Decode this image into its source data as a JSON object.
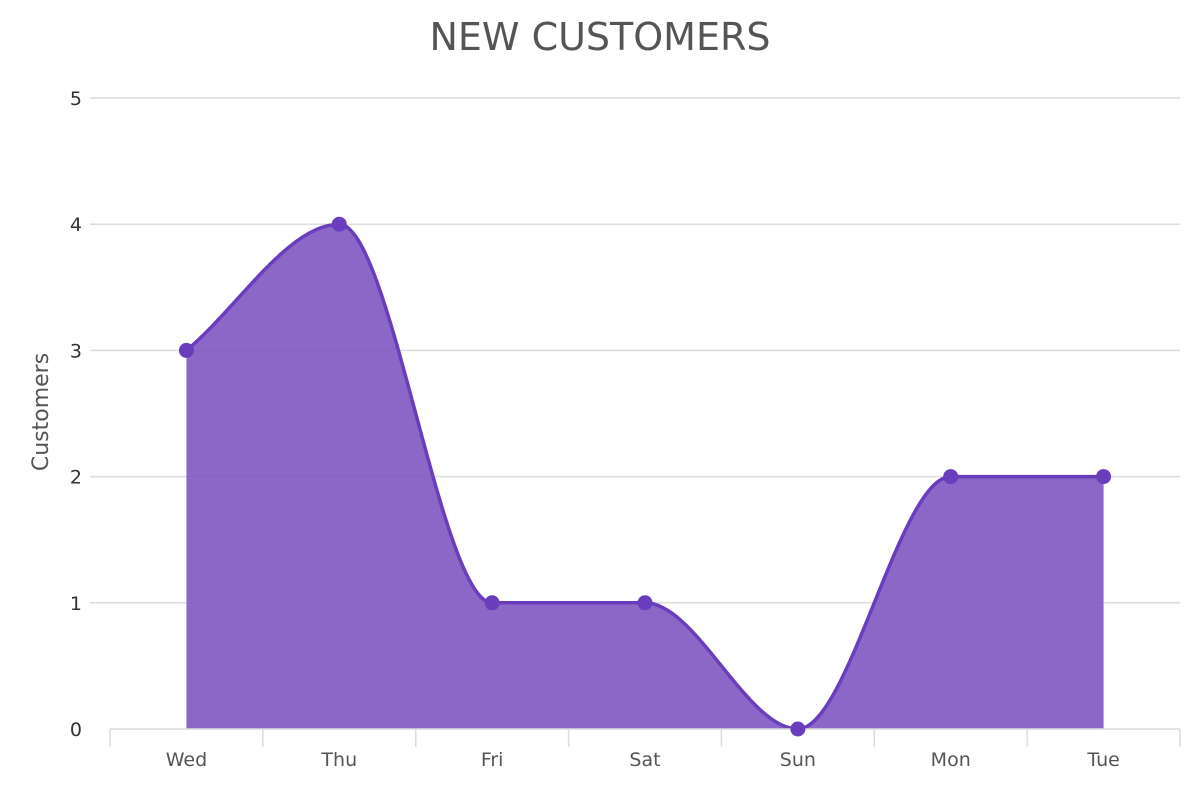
{
  "chart_data": {
    "type": "area",
    "title": "NEW CUSTOMERS",
    "xlabel": "",
    "ylabel": "Customers",
    "categories": [
      "Wed",
      "Thu",
      "Fri",
      "Sat",
      "Sun",
      "Mon",
      "Tue"
    ],
    "series": [
      {
        "values": [
          3,
          4,
          1,
          1,
          0,
          2,
          2
        ],
        "color": "#6a3dbd",
        "fill_color": "#7e57c2"
      }
    ],
    "yticks": [
      "0",
      "1",
      "2",
      "3",
      "4",
      "5"
    ],
    "ylim": [
      0,
      5
    ],
    "grid": true,
    "smooth": true,
    "legend": "none"
  }
}
